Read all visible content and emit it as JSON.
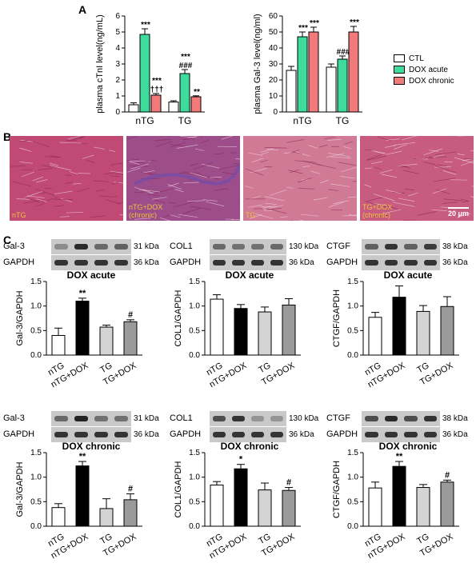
{
  "panels": {
    "a": "A",
    "b": "B",
    "c": "C"
  },
  "legend": [
    {
      "label": "CTL",
      "color": "#ffffff"
    },
    {
      "label": "DOX acute",
      "color": "#3ddc9d"
    },
    {
      "label": "DOX chronic",
      "color": "#f27a7a"
    }
  ],
  "micrographs": [
    {
      "label": "nTG"
    },
    {
      "label": "nTG+DOX\n(chronic)"
    },
    {
      "label": "TG"
    },
    {
      "label": "TG+DOX\n(chronic)"
    }
  ],
  "scale_bar": "20 μm",
  "blots": {
    "acute": [
      {
        "protein": "Gal-3",
        "kda": "31 kDa",
        "loading": "GAPDH",
        "loading_kda": "36 kDa"
      },
      {
        "protein": "COL1",
        "kda": "130 kDa",
        "loading": "GAPDH",
        "loading_kda": "36 kDa"
      },
      {
        "protein": "CTGF",
        "kda": "38 kDa",
        "loading": "GAPDH",
        "loading_kda": "36 kDa"
      }
    ],
    "chronic": [
      {
        "protein": "Gal-3",
        "kda": "31 kDa",
        "loading": "GAPDH",
        "loading_kda": "36 kDa"
      },
      {
        "protein": "COL1",
        "kda": "130 kDa",
        "loading": "GAPDH",
        "loading_kda": "36 kDa"
      },
      {
        "protein": "CTGF",
        "kda": "38 kDa",
        "loading": "GAPDH",
        "loading_kda": "36 kDa"
      }
    ]
  },
  "chart_data": [
    {
      "type": "bar",
      "ylabel": "plasma cTnI level(ng/mL)",
      "ylim": [
        0,
        6
      ],
      "yticks": [
        0,
        1,
        2,
        3,
        4,
        5,
        6
      ],
      "categories": [
        "nTG",
        "TG"
      ],
      "series": [
        {
          "name": "CTL",
          "color": "#ffffff",
          "values": [
            0.45,
            0.62
          ],
          "errors": [
            0.12,
            0.08
          ],
          "annotations": [
            "",
            ""
          ]
        },
        {
          "name": "DOX acute",
          "color": "#3ddc9d",
          "values": [
            4.85,
            2.4
          ],
          "errors": [
            0.35,
            0.25
          ],
          "annotations": [
            "***",
            "***\n###"
          ]
        },
        {
          "name": "DOX chronic",
          "color": "#f27a7a",
          "values": [
            1.05,
            0.95
          ],
          "errors": [
            0.1,
            0.06
          ],
          "annotations": [
            "***\n†††",
            "**"
          ]
        }
      ]
    },
    {
      "type": "bar",
      "ylabel": "plasma Gal-3 level(ng/ml)",
      "ylim": [
        0,
        60
      ],
      "yticks": [
        0,
        10,
        20,
        30,
        40,
        50,
        60
      ],
      "categories": [
        "nTG",
        "TG"
      ],
      "series": [
        {
          "name": "CTL",
          "color": "#ffffff",
          "values": [
            26,
            28
          ],
          "errors": [
            2.5,
            2
          ],
          "annotations": [
            "",
            ""
          ]
        },
        {
          "name": "DOX acute",
          "color": "#3ddc9d",
          "values": [
            47,
            33
          ],
          "errors": [
            3,
            2
          ],
          "annotations": [
            "***",
            "###"
          ]
        },
        {
          "name": "DOX chronic",
          "color": "#f27a7a",
          "values": [
            50,
            50
          ],
          "errors": [
            3,
            3.5
          ],
          "annotations": [
            "***",
            "***"
          ]
        }
      ]
    },
    {
      "type": "bar",
      "title": "DOX acute",
      "ylabel": "Gal-3/GAPDH",
      "ylim": [
        0,
        1.5
      ],
      "yticks": [
        0,
        0.5,
        1.0,
        1.5
      ],
      "categories": [
        "nTG",
        "nTG+DOX",
        "TG",
        "TG+DOX"
      ],
      "values": [
        0.4,
        1.1,
        0.57,
        0.68
      ],
      "errors": [
        0.15,
        0.06,
        0.04,
        0.04
      ],
      "colors": [
        "#ffffff",
        "#000000",
        "#d4d4d4",
        "#9a9a9a"
      ],
      "annotations": [
        "",
        "**",
        "",
        "#"
      ]
    },
    {
      "type": "bar",
      "title": "DOX acute",
      "ylabel": "COL1/GAPDH",
      "ylim": [
        0,
        1.5
      ],
      "yticks": [
        0,
        0.5,
        1.0,
        1.5
      ],
      "categories": [
        "nTG",
        "nTG+DOX",
        "TG",
        "TG+DOX"
      ],
      "values": [
        1.14,
        0.95,
        0.88,
        1.02
      ],
      "errors": [
        0.09,
        0.08,
        0.1,
        0.13
      ],
      "colors": [
        "#ffffff",
        "#000000",
        "#d4d4d4",
        "#9a9a9a"
      ],
      "annotations": [
        "",
        "",
        "",
        ""
      ]
    },
    {
      "type": "bar",
      "title": "DOX acute",
      "ylabel": "CTGF/GAPDH",
      "ylim": [
        0,
        1.5
      ],
      "yticks": [
        0,
        0.5,
        1.0,
        1.5
      ],
      "categories": [
        "nTG",
        "nTG+DOX",
        "TG",
        "TG+DOX"
      ],
      "values": [
        0.77,
        1.18,
        0.89,
        0.99
      ],
      "errors": [
        0.1,
        0.23,
        0.12,
        0.2
      ],
      "colors": [
        "#ffffff",
        "#000000",
        "#d4d4d4",
        "#9a9a9a"
      ],
      "annotations": [
        "",
        "",
        "",
        ""
      ]
    },
    {
      "type": "bar",
      "title": "DOX chronic",
      "ylabel": "Gal-3/GAPDH",
      "ylim": [
        0,
        1.5
      ],
      "yticks": [
        0,
        0.5,
        1.0,
        1.5
      ],
      "categories": [
        "nTG",
        "nTG+DOX",
        "TG",
        "TG+DOX"
      ],
      "values": [
        0.38,
        1.23,
        0.36,
        0.54
      ],
      "errors": [
        0.08,
        0.09,
        0.2,
        0.12
      ],
      "colors": [
        "#ffffff",
        "#000000",
        "#d4d4d4",
        "#9a9a9a"
      ],
      "annotations": [
        "",
        "**",
        "",
        "#"
      ]
    },
    {
      "type": "bar",
      "title": "DOX chronic",
      "ylabel": "COL1/GAPDH",
      "ylim": [
        0,
        1.5
      ],
      "yticks": [
        0,
        0.5,
        1.0,
        1.5
      ],
      "categories": [
        "nTG",
        "nTG+DOX",
        "TG",
        "TG+DOX"
      ],
      "values": [
        0.84,
        1.17,
        0.74,
        0.73
      ],
      "errors": [
        0.07,
        0.09,
        0.14,
        0.06
      ],
      "colors": [
        "#ffffff",
        "#000000",
        "#d4d4d4",
        "#9a9a9a"
      ],
      "annotations": [
        "",
        "*",
        "",
        "#"
      ]
    },
    {
      "type": "bar",
      "title": "DOX chronic",
      "ylabel": "CTGF/GAPDH",
      "ylim": [
        0,
        1.5
      ],
      "yticks": [
        0,
        0.5,
        1.0,
        1.5
      ],
      "categories": [
        "nTG",
        "nTG+DOX",
        "TG",
        "TG+DOX"
      ],
      "values": [
        0.78,
        1.22,
        0.79,
        0.9
      ],
      "errors": [
        0.12,
        0.1,
        0.06,
        0.04
      ],
      "colors": [
        "#ffffff",
        "#000000",
        "#d4d4d4",
        "#9a9a9a"
      ],
      "annotations": [
        "",
        "**",
        "",
        "#"
      ]
    }
  ]
}
